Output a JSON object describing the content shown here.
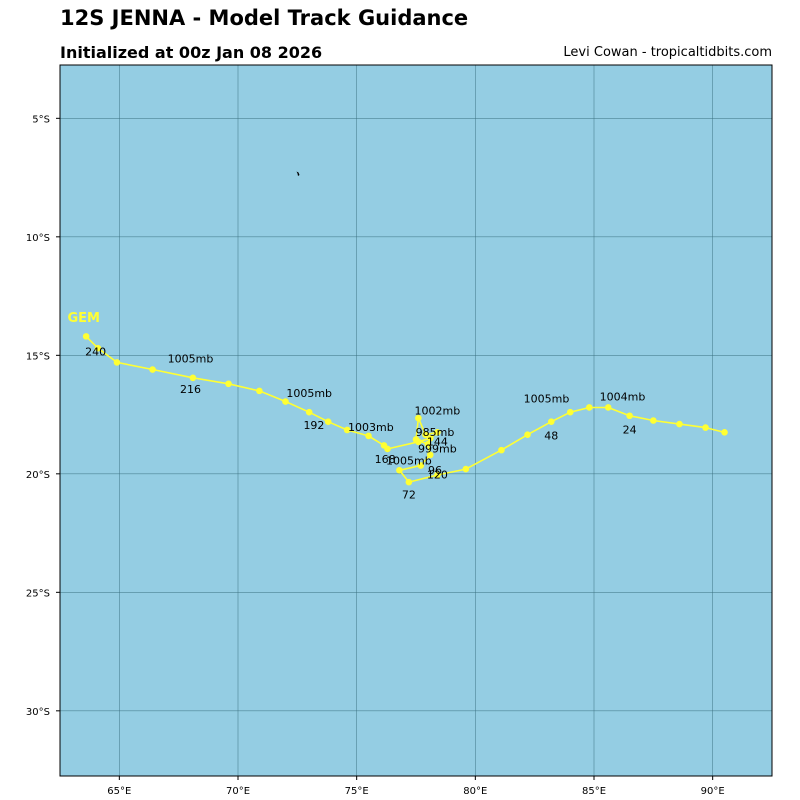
{
  "header": {
    "title": "12S JENNA - Model Track Guidance",
    "subtitle": "Initialized at 00z Jan 08 2026",
    "credit": "Levi Cowan - tropicaltidbits.com"
  },
  "colors": {
    "ocean": "#94cde3",
    "track": "#ffff33",
    "grid": "#3a6f80",
    "model_label": "#ffff33"
  },
  "map": {
    "lon_range": [
      62.5,
      92.5
    ],
    "lat_range": [
      -32.75,
      -2.75
    ],
    "lon_ticks": [
      "65°E",
      "70°E",
      "75°E",
      "80°E",
      "85°E",
      "90°E"
    ],
    "lat_ticks": [
      "5°S",
      "10°S",
      "15°S",
      "20°S",
      "25°S",
      "30°S"
    ]
  },
  "chart_data": {
    "type": "scatter",
    "series": [
      {
        "name": "GEM",
        "points": [
          [
            90.5,
            -18.25
          ],
          [
            89.7,
            -18.05
          ],
          [
            88.6,
            -17.9
          ],
          [
            87.5,
            -17.75
          ],
          [
            86.5,
            -17.55
          ],
          [
            85.6,
            -17.2
          ],
          [
            84.8,
            -17.2
          ],
          [
            84.0,
            -17.4
          ],
          [
            83.2,
            -17.8
          ],
          [
            82.2,
            -18.35
          ],
          [
            81.1,
            -19.0
          ],
          [
            79.6,
            -19.8
          ],
          [
            78.4,
            -20.05
          ],
          [
            77.2,
            -20.35
          ],
          [
            76.8,
            -19.85
          ],
          [
            77.7,
            -19.65
          ],
          [
            78.1,
            -19.2
          ],
          [
            78.0,
            -18.75
          ],
          [
            77.5,
            -18.55
          ],
          [
            77.6,
            -17.65
          ],
          [
            77.9,
            -18.35
          ],
          [
            78.4,
            -18.25
          ],
          [
            78.1,
            -18.5
          ],
          [
            77.6,
            -18.65
          ],
          [
            76.3,
            -18.95
          ],
          [
            76.15,
            -18.8
          ],
          [
            75.5,
            -18.4
          ],
          [
            74.6,
            -18.15
          ],
          [
            73.8,
            -17.8
          ],
          [
            73.0,
            -17.4
          ],
          [
            72.0,
            -16.95
          ],
          [
            70.9,
            -16.5
          ],
          [
            69.6,
            -16.2
          ],
          [
            68.1,
            -15.95
          ],
          [
            66.4,
            -15.6
          ],
          [
            64.9,
            -15.3
          ],
          [
            64.1,
            -14.7
          ],
          [
            63.6,
            -14.2
          ]
        ],
        "hour_labels": [
          {
            "text": "24",
            "lon": 86.5,
            "lat": -18.3
          },
          {
            "text": "48",
            "lon": 83.2,
            "lat": -18.55
          },
          {
            "text": "72",
            "lon": 77.2,
            "lat": -21.05
          },
          {
            "text": "96",
            "lon": 78.3,
            "lat": -20.0
          },
          {
            "text": "120",
            "lon": 78.4,
            "lat": -20.2
          },
          {
            "text": "144",
            "lon": 78.4,
            "lat": -18.8
          },
          {
            "text": "168",
            "lon": 76.2,
            "lat": -19.55
          },
          {
            "text": "192",
            "lon": 73.2,
            "lat": -18.1
          },
          {
            "text": "216",
            "lon": 68.0,
            "lat": -16.6
          },
          {
            "text": "240",
            "lon": 64.0,
            "lat": -15.0
          }
        ],
        "pressure_labels": [
          {
            "text": "1004mb",
            "lon": 86.2,
            "lat": -16.9
          },
          {
            "text": "1005mb",
            "lon": 83.0,
            "lat": -17.0
          },
          {
            "text": "1002mb",
            "lon": 78.4,
            "lat": -17.5
          },
          {
            "text": "985mb",
            "lon": 78.3,
            "lat": -18.4
          },
          {
            "text": "999mb",
            "lon": 78.4,
            "lat": -19.1
          },
          {
            "text": "1005mb",
            "lon": 77.2,
            "lat": -19.6
          },
          {
            "text": "1003mb",
            "lon": 75.6,
            "lat": -18.2
          },
          {
            "text": "1005mb",
            "lon": 73.0,
            "lat": -16.75
          },
          {
            "text": "1005mb",
            "lon": 68.0,
            "lat": -15.3
          }
        ],
        "model_label": {
          "text": "GEM",
          "lon": 63.5,
          "lat": -13.6
        }
      }
    ]
  }
}
